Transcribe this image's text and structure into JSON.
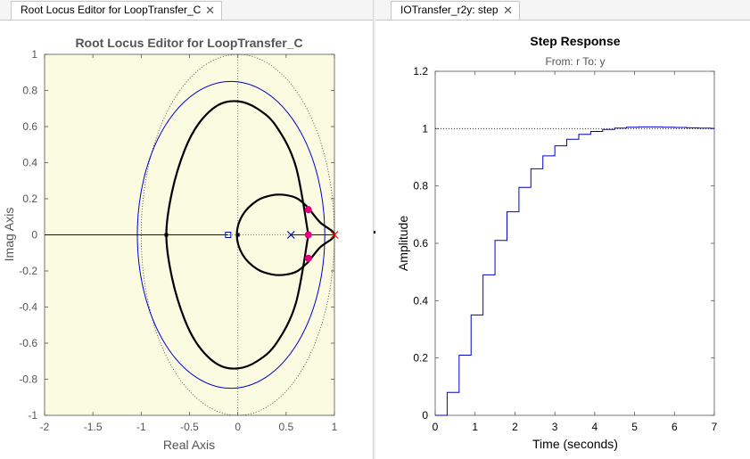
{
  "tabs": {
    "left": {
      "label": "Root Locus Editor for LoopTransfer_C",
      "close": "✕"
    },
    "right": {
      "label": "IOTransfer_r2y: step",
      "close": "✕"
    }
  },
  "root_locus": {
    "title": "Root Locus Editor for LoopTransfer_C",
    "xlabel": "Real Axis",
    "ylabel": "Imag Axis",
    "xticks": [
      "-2",
      "-1.5",
      "-1",
      "-0.5",
      "0",
      "0.5",
      "1"
    ],
    "yticks": [
      "1",
      "0.8",
      "0.6",
      "0.4",
      "0.2",
      "0",
      "-0.2",
      "-0.4",
      "-0.6",
      "-0.8",
      "-1"
    ]
  },
  "step": {
    "title": "Step Response",
    "subtitle": "From: r  To: y",
    "xlabel": "Time (seconds)",
    "ylabel": "Amplitude",
    "xticks": [
      "0",
      "1",
      "2",
      "3",
      "4",
      "5",
      "6",
      "7"
    ],
    "yticks": [
      "1.2",
      "1",
      "0.8",
      "0.6",
      "0.4",
      "0.2",
      "0"
    ]
  },
  "colors": {
    "locus": "#000000",
    "blue": "#0000cc",
    "pole_marker": "#e0007f",
    "pole_x": "#ff0000",
    "plot_bg_left": "#fbfbe1"
  },
  "chart_data": [
    {
      "type": "line",
      "title": "Root Locus Editor for LoopTransfer_C",
      "xlabel": "Real Axis",
      "ylabel": "Imag Axis",
      "xlim": [
        -2,
        1
      ],
      "ylim": [
        -1,
        1
      ],
      "grid": false,
      "open_loop_poles": [
        0.55,
        1.0
      ],
      "open_loop_zeros": [
        -0.1
      ],
      "closed_loop_poles": [
        [
          0.73,
          0.14
        ],
        [
          0.73,
          0.0
        ],
        [
          0.73,
          -0.13
        ]
      ],
      "locus_branches": {
        "outer_branch": {
          "x": [
            0.73,
            0.6,
            0.4,
            0.2,
            0.0,
            -0.2,
            -0.4,
            -0.55,
            -0.68,
            -0.74,
            -0.68,
            -0.55,
            -0.4,
            -0.2,
            0.0,
            0.2,
            0.4,
            0.6,
            0.73
          ],
          "y": [
            0.0,
            0.38,
            0.6,
            0.7,
            0.74,
            0.72,
            0.62,
            0.47,
            0.24,
            0.0,
            -0.24,
            -0.47,
            -0.62,
            -0.72,
            -0.74,
            -0.7,
            -0.6,
            -0.38,
            0.0
          ]
        },
        "inner_loop": {
          "x": [
            0.73,
            0.62,
            0.5,
            0.36,
            0.2,
            0.05,
            -0.01,
            0.05,
            0.2,
            0.36,
            0.5,
            0.62,
            0.73
          ],
          "y": [
            0.15,
            0.2,
            0.22,
            0.22,
            0.19,
            0.11,
            0.0,
            -0.11,
            -0.19,
            -0.22,
            -0.22,
            -0.2,
            -0.15
          ]
        },
        "real_axis_segment": {
          "x": [
            -2,
            -0.1
          ],
          "y": [
            0,
            0
          ]
        },
        "to_pole": {
          "x": [
            0.73,
            0.85,
            1.0,
            0.85,
            0.73
          ],
          "y": [
            0.15,
            0.07,
            0.0,
            -0.07,
            -0.15
          ]
        }
      },
      "blue_ellipse": {
        "center": [
          -0.07,
          0
        ],
        "semi_axes": [
          0.97,
          0.85
        ]
      },
      "dotted_ellipse": {
        "center": [
          0,
          0
        ],
        "semi_axes": [
          1.0,
          1.0
        ]
      }
    },
    {
      "type": "line",
      "title": "Step Response",
      "subtitle": "From: r  To: y",
      "xlabel": "Time (seconds)",
      "ylabel": "Amplitude",
      "xlim": [
        0,
        7
      ],
      "ylim": [
        0,
        1.2
      ],
      "reference_line": 1.0,
      "series": [
        {
          "style": "stairs",
          "dt": 0.3,
          "values": [
            0,
            0.08,
            0.21,
            0.35,
            0.49,
            0.61,
            0.71,
            0.795,
            0.86,
            0.905,
            0.94,
            0.963,
            0.98,
            0.99,
            0.997,
            1.002,
            1.005,
            1.006,
            1.006,
            1.005,
            1.004,
            1.003,
            1.002,
            1.001,
            1.001
          ]
        }
      ]
    }
  ]
}
